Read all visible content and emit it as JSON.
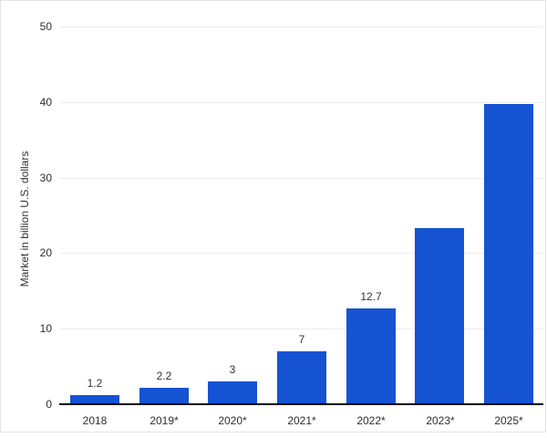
{
  "frame": {
    "background": "#ffffff",
    "border_color": "#e4e4e4"
  },
  "chart_data": {
    "type": "bar",
    "title": "",
    "categories": [
      "2018",
      "2019*",
      "2020*",
      "2021*",
      "2022*",
      "2023*",
      "2025*"
    ],
    "values": [
      1.2,
      2.2,
      3,
      7,
      12.7,
      23.3,
      39.7
    ],
    "data_labels": [
      "1.2",
      "2.2",
      "3",
      "7",
      "12.7",
      "",
      ""
    ],
    "xlabel": "",
    "ylabel": "Market in billion U.S. dollars",
    "ylim": [
      0,
      50
    ],
    "yticks": [
      0,
      10,
      20,
      30,
      40,
      50
    ],
    "grid": true,
    "legend": "none",
    "bar_color": "#1553d3",
    "gridline_color": "#ececec",
    "axis_line_color": "#000000",
    "text_color": "#2e2e2e"
  }
}
